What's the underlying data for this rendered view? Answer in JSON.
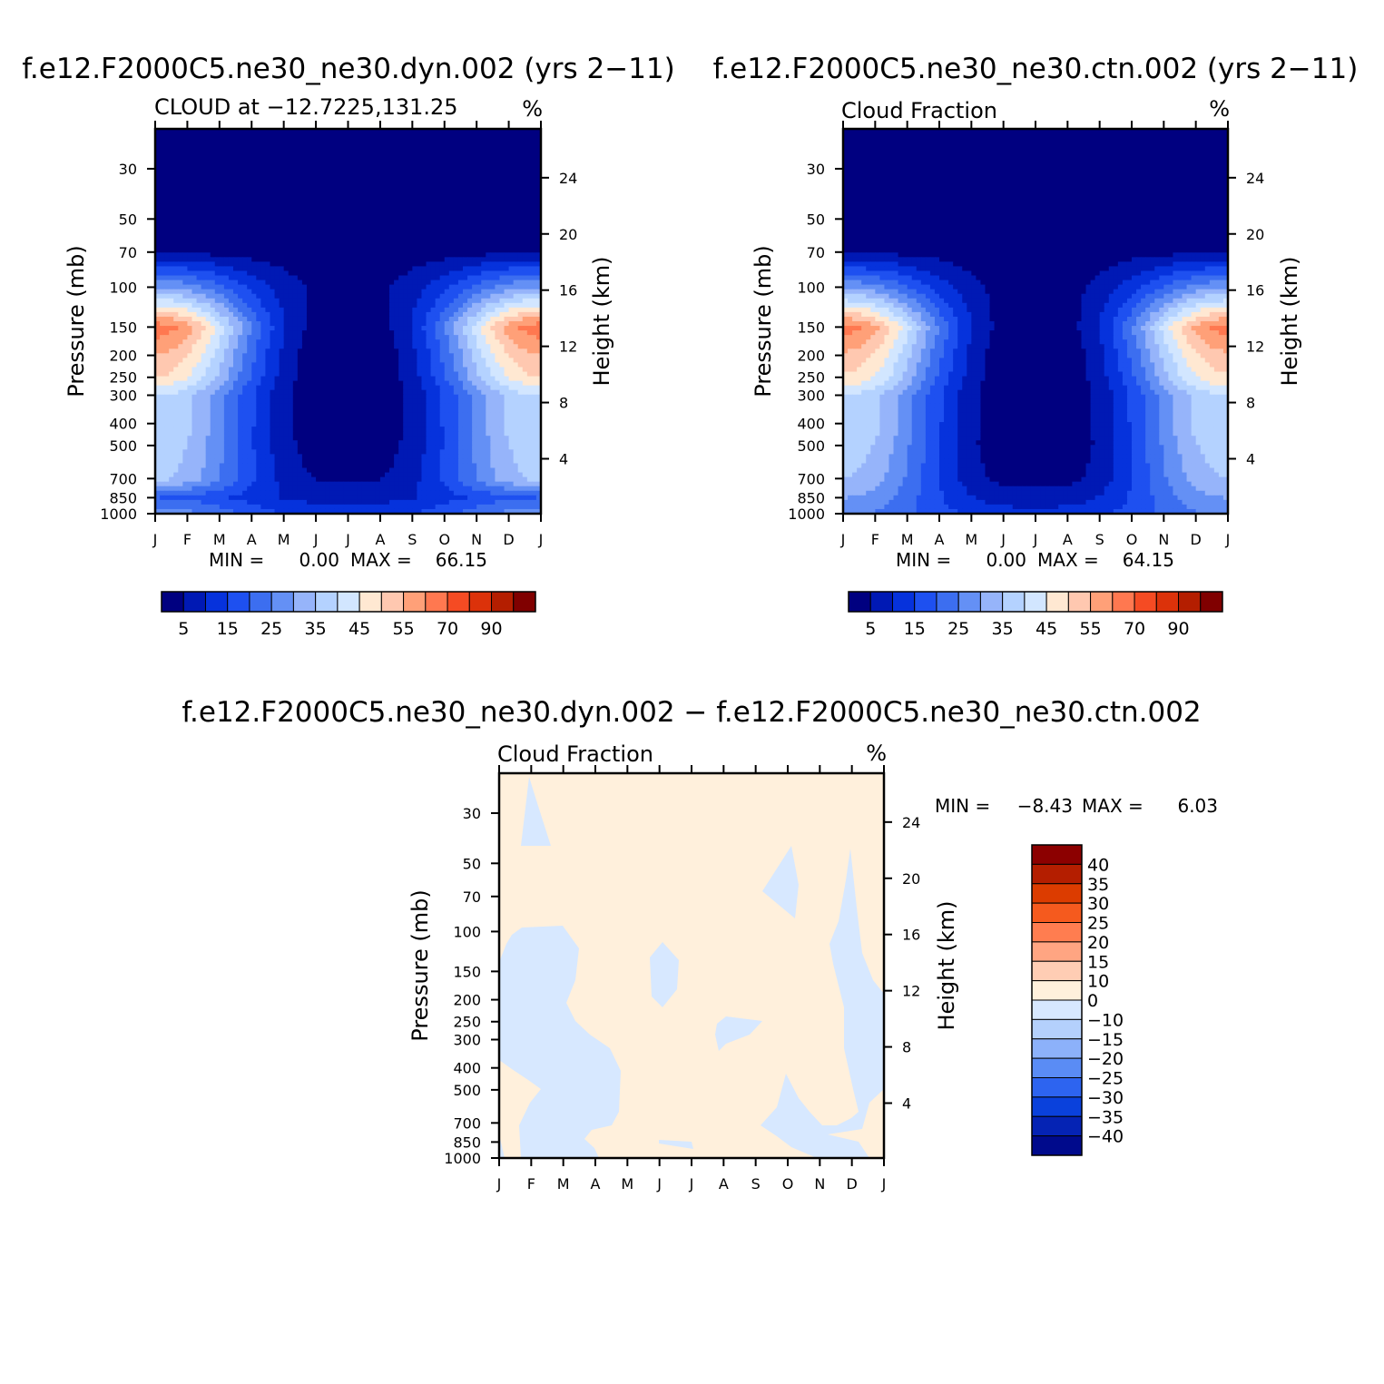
{
  "panels": [
    {
      "id": "dyn",
      "run_title": "f.e12.F2000C5.ne30_ne30.dyn.002 (yrs 2−11)",
      "subtitle_left": "CLOUD at −12.7225,131.25",
      "subtitle_right": "%",
      "ylabel": "Pressure (mb)",
      "y2label": "Height (km)",
      "stats": {
        "min_label": "MIN =",
        "min": "0.00",
        "max_label": "MAX =",
        "max": "66.15"
      }
    },
    {
      "id": "ctn",
      "run_title": "f.e12.F2000C5.ne30_ne30.ctn.002 (yrs 2−11)",
      "subtitle_left": "Cloud Fraction",
      "subtitle_right": "%",
      "ylabel": "Pressure (mb)",
      "y2label": "Height (km)",
      "stats": {
        "min_label": "MIN =",
        "min": "0.00",
        "max_label": "MAX =",
        "max": "64.15"
      }
    },
    {
      "id": "diff",
      "run_title": "f.e12.F2000C5.ne30_ne30.dyn.002 − f.e12.F2000C5.ne30_ne30.ctn.002",
      "subtitle_left": "Cloud Fraction",
      "subtitle_right": "%",
      "ylabel": "Pressure (mb)",
      "y2label": "Height (km)",
      "stats": {
        "min_label": "MIN =",
        "min": "−8.43",
        "max_label": "MAX =",
        "max": "6.03"
      }
    }
  ],
  "chart_data": [
    {
      "type": "heatmap",
      "title": "f.e12.F2000C5.ne30_ne30.dyn.002 (yrs 2−11)",
      "subtitle": "CLOUD at −12.7225,131.25",
      "units": "%",
      "ylabel": "Pressure (mb)",
      "y2label": "Height (km)",
      "x_ticks": [
        "J",
        "F",
        "M",
        "A",
        "M",
        "J",
        "J",
        "A",
        "S",
        "O",
        "N",
        "D",
        "J"
      ],
      "y_ticks": [
        30,
        50,
        70,
        100,
        150,
        200,
        250,
        300,
        400,
        500,
        700,
        850,
        1000
      ],
      "y2_ticks": [
        24,
        20,
        16,
        12,
        8,
        4
      ],
      "y_scale": "log",
      "ylim": [
        1000,
        20
      ],
      "colorbar_labels": [
        "5",
        "15",
        "25",
        "35",
        "45",
        "55",
        "70",
        "90"
      ],
      "levels": [
        0,
        5,
        10,
        15,
        20,
        25,
        30,
        35,
        40,
        45,
        50,
        55,
        60,
        70,
        80,
        90
      ],
      "min": 0.0,
      "max": 66.15,
      "profile_p": [
        1000,
        850,
        700,
        500,
        400,
        300,
        250,
        200,
        150,
        100,
        70,
        50,
        30
      ],
      "profile_a": [
        28,
        20,
        36,
        38,
        40,
        40,
        50,
        55,
        63,
        30,
        4,
        0,
        0
      ],
      "profile_b": [
        13,
        8,
        4,
        2,
        1,
        1,
        1,
        1,
        2,
        4,
        2,
        0,
        0
      ]
    },
    {
      "type": "heatmap",
      "title": "f.e12.F2000C5.ne30_ne30.ctn.002 (yrs 2−11)",
      "subtitle": "Cloud Fraction",
      "units": "%",
      "ylabel": "Pressure (mb)",
      "y2label": "Height (km)",
      "x_ticks": [
        "J",
        "F",
        "M",
        "A",
        "M",
        "J",
        "J",
        "A",
        "S",
        "O",
        "N",
        "D",
        "J"
      ],
      "y_ticks": [
        30,
        50,
        70,
        100,
        150,
        200,
        250,
        300,
        400,
        500,
        700,
        850,
        1000
      ],
      "y2_ticks": [
        24,
        20,
        16,
        12,
        8,
        4
      ],
      "y_scale": "log",
      "ylim": [
        1000,
        20
      ],
      "colorbar_labels": [
        "5",
        "15",
        "25",
        "35",
        "45",
        "55",
        "70",
        "90"
      ],
      "levels": [
        0,
        5,
        10,
        15,
        20,
        25,
        30,
        35,
        40,
        45,
        50,
        55,
        60,
        70,
        80,
        90
      ],
      "min": 0.0,
      "max": 64.15,
      "profile_p": [
        1000,
        850,
        700,
        500,
        400,
        300,
        250,
        200,
        150,
        100,
        70,
        50,
        30
      ],
      "profile_a": [
        26,
        30,
        35,
        38,
        40,
        40,
        49,
        54,
        62,
        29,
        4,
        0,
        0
      ],
      "profile_b": [
        12,
        7,
        3,
        1,
        1,
        1,
        1,
        1,
        2,
        3,
        2,
        0,
        0
      ]
    },
    {
      "type": "heatmap",
      "title": "f.e12.F2000C5.ne30_ne30.dyn.002 − f.e12.F2000C5.ne30_ne30.ctn.002",
      "subtitle": "Cloud Fraction",
      "units": "%",
      "ylabel": "Pressure (mb)",
      "y2label": "Height (km)",
      "x_ticks": [
        "J",
        "F",
        "M",
        "A",
        "M",
        "J",
        "J",
        "A",
        "S",
        "O",
        "N",
        "D",
        "J"
      ],
      "y_ticks": [
        30,
        50,
        70,
        100,
        150,
        200,
        250,
        300,
        400,
        500,
        700,
        850,
        1000
      ],
      "y2_ticks": [
        24,
        20,
        16,
        12,
        8,
        4
      ],
      "y_scale": "log",
      "ylim": [
        1000,
        20
      ],
      "colorbar_labels": [
        "40",
        "35",
        "30",
        "25",
        "20",
        "15",
        "10",
        "0",
        "−10",
        "−15",
        "−20",
        "−25",
        "−30",
        "−35",
        "−40"
      ],
      "min": -8.43,
      "max": 6.03
    }
  ],
  "colors": {
    "seq": [
      "#000080",
      "#0019b4",
      "#0632dc",
      "#1e50f0",
      "#3c6ef0",
      "#6490f5",
      "#96b4fa",
      "#b4d2ff",
      "#d2e6ff",
      "#ffe8d2",
      "#ffc8b0",
      "#ffa078",
      "#ff7850",
      "#f54b23",
      "#dc320a",
      "#b41e00",
      "#800000"
    ],
    "diff_pos": [
      "#fff0dc",
      "#ffcdb4",
      "#ffa582",
      "#ff7d50",
      "#f55a1e",
      "#dc3c00",
      "#b41e00",
      "#8c0000"
    ],
    "diff_neg": [
      "#d7e8ff",
      "#b4d0fc",
      "#8cb1fa",
      "#5a8cf5",
      "#2d64f0",
      "#0a41dc",
      "#0523b4",
      "#000a8c"
    ]
  }
}
